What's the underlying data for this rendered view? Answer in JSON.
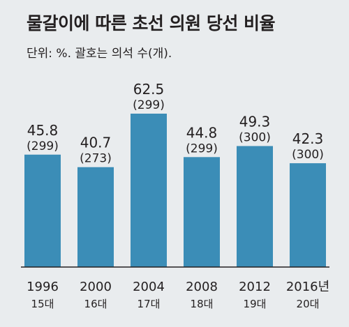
{
  "chart_data": {
    "type": "bar",
    "title": "물갈이에 따른 초선 의원 당선 비율",
    "subtitle": "단위: %. 괄호는 의석 수(개).",
    "categories": [
      "1996",
      "2000",
      "2004",
      "2008",
      "2012",
      "2016년"
    ],
    "category_sublabels": [
      "15대",
      "16대",
      "17대",
      "18대",
      "19대",
      "20대"
    ],
    "values": [
      45.8,
      40.7,
      62.5,
      44.8,
      49.3,
      42.3
    ],
    "value_labels": [
      "45.8",
      "40.7",
      "62.5",
      "44.8",
      "49.3",
      "42.3"
    ],
    "seat_labels": [
      "(299)",
      "(273)",
      "(299)",
      "(299)",
      "(300)",
      "(300)"
    ],
    "seats": [
      299,
      273,
      299,
      299,
      300,
      300
    ],
    "xlabel": "",
    "ylabel": "",
    "grid": false,
    "legend": "none",
    "colors": {
      "bar": "#3b8db7",
      "background": "#e9ecee",
      "axis": "#231f20",
      "text": "#231f20"
    }
  }
}
